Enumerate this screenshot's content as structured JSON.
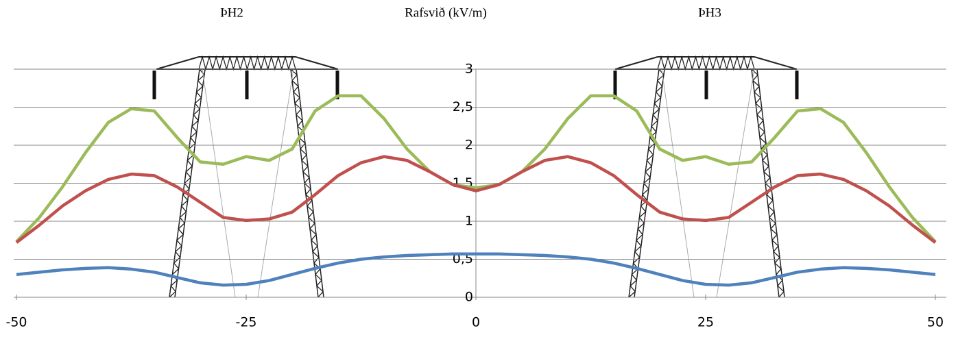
{
  "chart_data": {
    "type": "line",
    "title": "Rafsvið (kV/m)",
    "annotations": [
      "ÞH2",
      "ÞH3"
    ],
    "x": [
      -50,
      -47.5,
      -45,
      -42.5,
      -40,
      -37.5,
      -35,
      -32.5,
      -30,
      -27.5,
      -25,
      -22.5,
      -20,
      -17.5,
      -15,
      -12.5,
      -10,
      -7.5,
      -5,
      -2.5,
      0,
      2.5,
      5,
      7.5,
      10,
      12.5,
      15,
      17.5,
      20,
      22.5,
      25,
      27.5,
      30,
      32.5,
      35,
      37.5,
      40,
      42.5,
      45,
      47.5,
      50
    ],
    "series": [
      {
        "color": "#9bbb59",
        "values": [
          0.73,
          1.05,
          1.45,
          1.9,
          2.3,
          2.48,
          2.45,
          2.1,
          1.78,
          1.75,
          1.85,
          1.8,
          1.95,
          2.45,
          2.65,
          2.65,
          2.35,
          1.95,
          1.65,
          1.48,
          1.44,
          1.48,
          1.65,
          1.95,
          2.35,
          2.65,
          2.65,
          2.45,
          1.95,
          1.8,
          1.85,
          1.75,
          1.78,
          2.1,
          2.45,
          2.48,
          2.3,
          1.9,
          1.45,
          1.05,
          0.73
        ]
      },
      {
        "color": "#c0504d",
        "values": [
          0.72,
          0.95,
          1.2,
          1.4,
          1.55,
          1.62,
          1.6,
          1.45,
          1.25,
          1.05,
          1.01,
          1.03,
          1.12,
          1.35,
          1.6,
          1.77,
          1.85,
          1.8,
          1.65,
          1.48,
          1.4,
          1.48,
          1.65,
          1.8,
          1.85,
          1.77,
          1.6,
          1.35,
          1.12,
          1.03,
          1.01,
          1.05,
          1.25,
          1.45,
          1.6,
          1.62,
          1.55,
          1.4,
          1.2,
          0.95,
          0.72
        ]
      },
      {
        "color": "#4f81bd",
        "values": [
          0.3,
          0.33,
          0.36,
          0.38,
          0.39,
          0.37,
          0.33,
          0.26,
          0.19,
          0.16,
          0.17,
          0.22,
          0.3,
          0.38,
          0.45,
          0.5,
          0.53,
          0.55,
          0.56,
          0.57,
          0.57,
          0.57,
          0.56,
          0.55,
          0.53,
          0.5,
          0.45,
          0.38,
          0.3,
          0.22,
          0.17,
          0.16,
          0.19,
          0.26,
          0.33,
          0.37,
          0.39,
          0.38,
          0.36,
          0.33,
          0.3
        ]
      }
    ],
    "xlim": [
      -50,
      50
    ],
    "xticks": [
      -50,
      -25,
      0,
      25,
      50
    ],
    "ylim": [
      0,
      3
    ],
    "yticks": [
      0,
      {
        "value": 0.5,
        "label": "0,5"
      },
      1,
      {
        "value": 1.5,
        "label": "1,5"
      },
      2,
      {
        "value": 2.5,
        "label": "2,5"
      },
      3
    ],
    "grid": true
  }
}
